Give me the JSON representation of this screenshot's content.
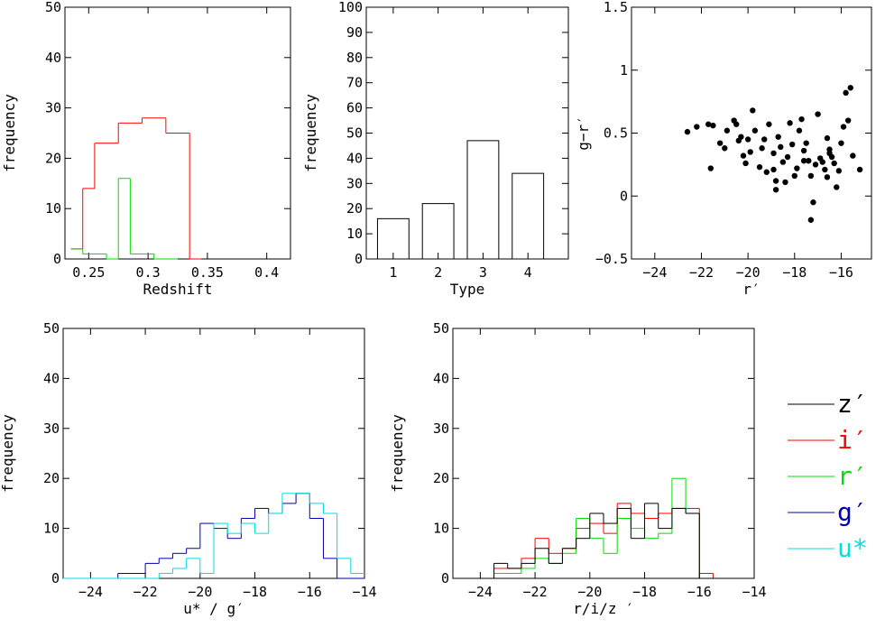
{
  "chart_data": [
    {
      "id": "p1",
      "type": "histogram",
      "xlabel": "Redshift",
      "ylabel": "frequency",
      "xlim": [
        0.23,
        0.42
      ],
      "ylim": [
        0,
        50
      ],
      "xticks": [
        0.25,
        0.3,
        0.35,
        0.4
      ],
      "xtick_labels": [
        "0.25",
        "0.3",
        "0.35",
        "0.4"
      ],
      "yticks": [
        0,
        10,
        20,
        30,
        40,
        50
      ],
      "ytick_labels": [
        "0",
        "10",
        "20",
        "30",
        "40",
        "50"
      ],
      "series": [
        {
          "color": "#ff0000",
          "bins": [
            [
              0.235,
              0.245,
              2
            ],
            [
              0.245,
              0.255,
              14
            ],
            [
              0.255,
              0.265,
              23
            ],
            [
              0.265,
              0.275,
              23
            ],
            [
              0.275,
              0.285,
              27
            ],
            [
              0.285,
              0.295,
              27
            ],
            [
              0.295,
              0.305,
              28
            ],
            [
              0.305,
              0.315,
              28
            ],
            [
              0.315,
              0.325,
              25
            ],
            [
              0.325,
              0.335,
              25
            ],
            [
              0.335,
              0.345,
              0
            ]
          ]
        },
        {
          "color": "#00dd00",
          "bins": [
            [
              0.235,
              0.24,
              2
            ],
            [
              0.24,
              0.245,
              2
            ],
            [
              0.245,
              0.255,
              1
            ],
            [
              0.255,
              0.265,
              1
            ],
            [
              0.265,
              0.275,
              0
            ],
            [
              0.275,
              0.285,
              16
            ],
            [
              0.285,
              0.295,
              1
            ],
            [
              0.295,
              0.305,
              1
            ],
            [
              0.305,
              0.315,
              0
            ],
            [
              0.315,
              0.325,
              0
            ]
          ]
        }
      ]
    },
    {
      "id": "p2",
      "type": "bar",
      "xlabel": "Type",
      "ylabel": "frequency",
      "xlim": [
        0.4,
        4.9
      ],
      "ylim": [
        0,
        100
      ],
      "xticks": [
        1,
        2,
        3,
        4
      ],
      "xtick_labels": [
        "1",
        "2",
        "3",
        "4"
      ],
      "yticks": [
        0,
        10,
        20,
        30,
        40,
        50,
        60,
        70,
        80,
        90,
        100
      ],
      "ytick_labels": [
        "0",
        "10",
        "20",
        "30",
        "40",
        "50",
        "60",
        "70",
        "80",
        "90",
        "100"
      ],
      "categories": [
        1,
        2,
        3,
        4
      ],
      "values": [
        16,
        22,
        47,
        34
      ],
      "bar_width": 0.7
    },
    {
      "id": "p3",
      "type": "scatter",
      "xlabel": "r′",
      "ylabel": "g−r′",
      "xlim": [
        -25,
        -14.7
      ],
      "ylim": [
        -0.5,
        1.5
      ],
      "xticks": [
        -24,
        -22,
        -20,
        -18,
        -16
      ],
      "xtick_labels": [
        "−24",
        "−22",
        "−20",
        "−18",
        "−16"
      ],
      "yticks": [
        -0.5,
        0,
        0.5,
        1,
        1.5
      ],
      "ytick_labels": [
        "−0.5",
        "0",
        "0.5",
        "1",
        "1.5"
      ],
      "points": [
        [
          -22.6,
          0.51
        ],
        [
          -22.2,
          0.55
        ],
        [
          -21.7,
          0.57
        ],
        [
          -21.5,
          0.56
        ],
        [
          -21.6,
          0.22
        ],
        [
          -21.2,
          0.42
        ],
        [
          -21,
          0.38
        ],
        [
          -20.9,
          0.52
        ],
        [
          -20.6,
          0.6
        ],
        [
          -20.5,
          0.57
        ],
        [
          -20.3,
          0.47
        ],
        [
          -20.2,
          0.32
        ],
        [
          -20.1,
          0.26
        ],
        [
          -20,
          0.45
        ],
        [
          -19.9,
          0.35
        ],
        [
          -19.8,
          0.68
        ],
        [
          -19.7,
          0.52
        ],
        [
          -19.5,
          0.23
        ],
        [
          -19.4,
          0.38
        ],
        [
          -19.3,
          0.45
        ],
        [
          -19.2,
          0.19
        ],
        [
          -19.1,
          0.57
        ],
        [
          -18.9,
          0.34
        ],
        [
          -18.8,
          0.12
        ],
        [
          -18.8,
          0.05
        ],
        [
          -18.7,
          0.47
        ],
        [
          -18.6,
          0.39
        ],
        [
          -18.5,
          0.27
        ],
        [
          -18.4,
          0.11
        ],
        [
          -18.3,
          0.31
        ],
        [
          -18.2,
          0.58
        ],
        [
          -18.1,
          0.41
        ],
        [
          -18,
          0.16
        ],
        [
          -17.9,
          0.22
        ],
        [
          -17.8,
          0.52
        ],
        [
          -17.7,
          0.61
        ],
        [
          -17.6,
          0.36
        ],
        [
          -17.5,
          0.42
        ],
        [
          -17.4,
          0.28
        ],
        [
          -17.3,
          0.16
        ],
        [
          -17.3,
          -0.19
        ],
        [
          -17.2,
          -0.05
        ],
        [
          -17.1,
          0.25
        ],
        [
          -17,
          0.65
        ],
        [
          -16.9,
          0.3
        ],
        [
          -16.8,
          0.27
        ],
        [
          -16.7,
          0.21
        ],
        [
          -16.6,
          0.15
        ],
        [
          -16.6,
          0.46
        ],
        [
          -16.5,
          0.34
        ],
        [
          -16.4,
          0.31
        ],
        [
          -16.3,
          0.26
        ],
        [
          -16.2,
          0.07
        ],
        [
          -16.1,
          0.2
        ],
        [
          -16,
          0.42
        ],
        [
          -15.9,
          0.55
        ],
        [
          -15.8,
          0.82
        ],
        [
          -15.7,
          0.6
        ],
        [
          -15.6,
          0.86
        ],
        [
          -15.5,
          0.32
        ],
        [
          -15.2,
          0.21
        ],
        [
          -16.5,
          0.37
        ],
        [
          -18.9,
          0.21
        ],
        [
          -20.4,
          0.44
        ],
        [
          -17.6,
          0.28
        ]
      ]
    },
    {
      "id": "p4",
      "type": "histogram",
      "xlabel": "u* / g′",
      "ylabel": "frequency",
      "xlim": [
        -25,
        -14
      ],
      "ylim": [
        0,
        50
      ],
      "xticks": [
        -24,
        -22,
        -20,
        -18,
        -16,
        -14
      ],
      "xtick_labels": [
        "−24",
        "−22",
        "−20",
        "−18",
        "−16",
        "−14"
      ],
      "yticks": [
        0,
        10,
        20,
        30,
        40,
        50
      ],
      "ytick_labels": [
        "0",
        "10",
        "20",
        "30",
        "40",
        "50"
      ],
      "series": [
        {
          "color": "#0000aa",
          "bins": [
            [
              -25,
              -23,
              0
            ],
            [
              -23,
              -22,
              1
            ],
            [
              -22,
              -21.5,
              3
            ],
            [
              -21.5,
              -21,
              4
            ],
            [
              -21,
              -20.5,
              5
            ],
            [
              -20.5,
              -20,
              6
            ],
            [
              -20,
              -19.5,
              11
            ],
            [
              -19.5,
              -19,
              10
            ],
            [
              -19,
              -18.5,
              8
            ],
            [
              -18.5,
              -18,
              12
            ],
            [
              -18,
              -17.5,
              14
            ],
            [
              -17.5,
              -17,
              13
            ],
            [
              -17,
              -16.5,
              15
            ],
            [
              -16.5,
              -16,
              17
            ],
            [
              -16,
              -15.5,
              12
            ],
            [
              -15.5,
              -15,
              4
            ],
            [
              -15,
              -14,
              0
            ]
          ]
        },
        {
          "color": "#00dddd",
          "bins": [
            [
              -25,
              -22,
              0
            ],
            [
              -22,
              -21.5,
              0
            ],
            [
              -21.5,
              -21,
              1
            ],
            [
              -21,
              -20.5,
              2
            ],
            [
              -20.5,
              -20,
              4
            ],
            [
              -20,
              -19.5,
              1
            ],
            [
              -19.5,
              -19,
              11
            ],
            [
              -19,
              -18.5,
              9
            ],
            [
              -18.5,
              -18,
              11
            ],
            [
              -18,
              -17.5,
              9
            ],
            [
              -17.5,
              -17,
              13
            ],
            [
              -17,
              -16.5,
              17
            ],
            [
              -16.5,
              -16,
              17
            ],
            [
              -16,
              -15.5,
              15
            ],
            [
              -15.5,
              -15,
              13
            ],
            [
              -15,
              -14.5,
              4
            ],
            [
              -14.5,
              -14,
              1
            ]
          ]
        }
      ]
    },
    {
      "id": "p5",
      "type": "histogram",
      "xlabel": "r/i/z ′",
      "ylabel": "frequency",
      "xlim": [
        -25,
        -14
      ],
      "ylim": [
        0,
        50
      ],
      "xticks": [
        -24,
        -22,
        -20,
        -18,
        -16,
        -14
      ],
      "xtick_labels": [
        "−24",
        "−22",
        "−20",
        "−18",
        "−16",
        "−14"
      ],
      "yticks": [
        0,
        10,
        20,
        30,
        40,
        50
      ],
      "ytick_labels": [
        "0",
        "10",
        "20",
        "30",
        "40",
        "50"
      ],
      "series": [
        {
          "color": "#ff0000",
          "bins": [
            [
              -25,
              -23.5,
              0
            ],
            [
              -23.5,
              -23,
              2
            ],
            [
              -23,
              -22.5,
              2
            ],
            [
              -22.5,
              -22,
              4
            ],
            [
              -22,
              -21.5,
              8
            ],
            [
              -21.5,
              -21,
              5
            ],
            [
              -21,
              -20.5,
              6
            ],
            [
              -20.5,
              -20,
              10
            ],
            [
              -20,
              -19.5,
              11
            ],
            [
              -19.5,
              -19,
              9
            ],
            [
              -19,
              -18.5,
              15
            ],
            [
              -18.5,
              -18,
              13
            ],
            [
              -18,
              -17.5,
              12
            ],
            [
              -17.5,
              -17,
              13
            ],
            [
              -17,
              -16.5,
              14
            ],
            [
              -16.5,
              -16,
              14
            ],
            [
              -16,
              -15.5,
              1
            ],
            [
              -15.5,
              -14,
              0
            ]
          ]
        },
        {
          "color": "#00dd00",
          "bins": [
            [
              -25,
              -23.5,
              0
            ],
            [
              -23.5,
              -23,
              1
            ],
            [
              -23,
              -22.5,
              1
            ],
            [
              -22.5,
              -22,
              2
            ],
            [
              -22,
              -21.5,
              4
            ],
            [
              -21.5,
              -21,
              3
            ],
            [
              -21,
              -20.5,
              5
            ],
            [
              -20.5,
              -20,
              12
            ],
            [
              -20,
              -19.5,
              8
            ],
            [
              -19.5,
              -19,
              5
            ],
            [
              -19,
              -18.5,
              12
            ],
            [
              -18.5,
              -18,
              10
            ],
            [
              -18,
              -17.5,
              8
            ],
            [
              -17.5,
              -17,
              9
            ],
            [
              -17,
              -16.5,
              20
            ],
            [
              -16.5,
              -16,
              13
            ],
            [
              -16,
              -15.5,
              0
            ],
            [
              -15.5,
              -14,
              0
            ]
          ]
        },
        {
          "color": "#000000",
          "bins": [
            [
              -25,
              -23.5,
              0
            ],
            [
              -23.5,
              -23,
              3
            ],
            [
              -23,
              -22.5,
              2
            ],
            [
              -22.5,
              -22,
              3
            ],
            [
              -22,
              -21.5,
              6
            ],
            [
              -21.5,
              -21,
              3
            ],
            [
              -21,
              -20.5,
              6
            ],
            [
              -20.5,
              -20,
              8
            ],
            [
              -20,
              -19.5,
              13
            ],
            [
              -19.5,
              -19,
              11
            ],
            [
              -19,
              -18.5,
              14
            ],
            [
              -18.5,
              -18,
              8
            ],
            [
              -18,
              -17.5,
              15
            ],
            [
              -17.5,
              -17,
              10
            ],
            [
              -17,
              -16.5,
              14
            ],
            [
              -16.5,
              -16,
              13
            ],
            [
              -16,
              -15.5,
              0
            ],
            [
              -15.5,
              -14,
              0
            ]
          ]
        }
      ]
    }
  ],
  "legend": {
    "placement": "right",
    "items": [
      {
        "label": "z′",
        "color": "#000000"
      },
      {
        "label": "i′",
        "color": "#ff0000"
      },
      {
        "label": "r′",
        "color": "#00dd00"
      },
      {
        "label": "g′",
        "color": "#0000aa"
      },
      {
        "label": "u*",
        "color": "#00dddd"
      }
    ]
  }
}
